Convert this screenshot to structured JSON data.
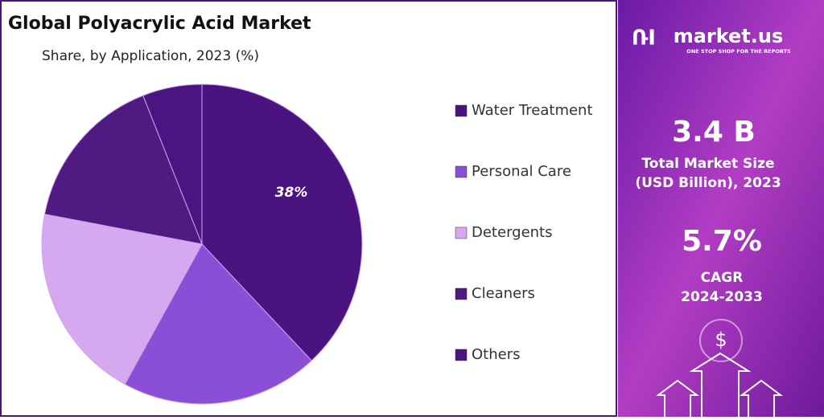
{
  "chart_data": {
    "type": "pie",
    "title": "Global Polyacrylic Acid Market",
    "subtitle": "Share, by Application, 2023 (%)",
    "categories": [
      "Water Treatment",
      "Personal Care",
      "Detergents",
      "Cleaners",
      "Others"
    ],
    "values": [
      38,
      20,
      20,
      16,
      6
    ],
    "value_labels": [
      "38%",
      null,
      null,
      null,
      null
    ],
    "colors": [
      "#4b1380",
      "#8a4fd6",
      "#d6a8ef",
      "#4f1b82",
      "#4a1580"
    ],
    "legend": "right"
  },
  "side_panel": {
    "brand": "market.us",
    "tagline": "ONE STOP SHOP FOR THE REPORTS",
    "market_size": "3.4 B",
    "market_size_label_1": "Total Market Size",
    "market_size_label_2": "(USD Billion), 2023",
    "cagr": "5.7%",
    "cagr_label_1": "CAGR",
    "cagr_label_2": "2024-2033",
    "icon": "$"
  }
}
